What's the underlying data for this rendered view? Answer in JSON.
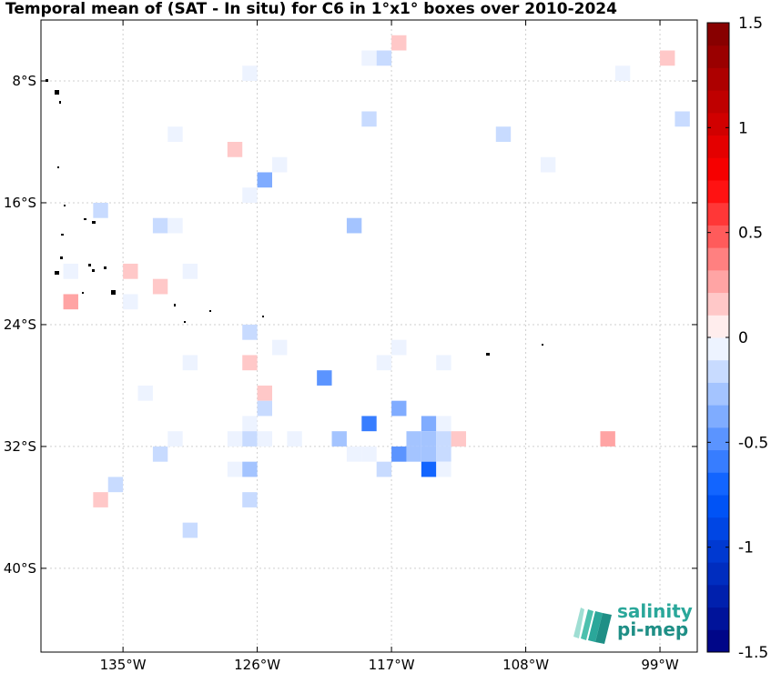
{
  "chart_data": {
    "type": "heatmap",
    "title": "Temporal mean of (SAT - In situ) for C6 in 1°x1° boxes over 2010-2024",
    "x_tick_labels": [
      "135°W",
      "126°W",
      "117°W",
      "108°W",
      "99°W"
    ],
    "y_tick_labels": [
      "8°S",
      "16°S",
      "24°S",
      "32°S",
      "40°S"
    ],
    "x_ticks": [
      -135,
      -126,
      -117,
      -108,
      -99
    ],
    "y_ticks": [
      -8,
      -16,
      -24,
      -32,
      -40
    ],
    "xlim": [
      -140.5,
      -96.5
    ],
    "ylim": [
      -45.5,
      -4
    ],
    "grid": true,
    "colorbar": {
      "range": [
        -1.5,
        1.5
      ],
      "ticks": [
        1.5,
        1,
        0.5,
        0,
        -0.5,
        -1,
        -1.5
      ],
      "tick_labels": [
        "1.5",
        "1",
        "0.5",
        "0",
        "-0.5",
        "-1",
        "-1.5"
      ],
      "levels": 28,
      "negative_color": "#00007f",
      "positive_color": "#7f0000"
    },
    "cells": [
      {
        "lon": -116.5,
        "lat": -5.5,
        "value": 0.15
      },
      {
        "lon": -118.5,
        "lat": -6.5,
        "value": -0.1
      },
      {
        "lon": -117.5,
        "lat": -6.5,
        "value": -0.2
      },
      {
        "lon": -98.5,
        "lat": -6.5,
        "value": 0.15
      },
      {
        "lon": -126.5,
        "lat": -7.5,
        "value": -0.1
      },
      {
        "lon": -101.5,
        "lat": -7.5,
        "value": -0.1
      },
      {
        "lon": -118.5,
        "lat": -10.5,
        "value": -0.2
      },
      {
        "lon": -97.5,
        "lat": -10.5,
        "value": -0.2
      },
      {
        "lon": -131.5,
        "lat": -11.5,
        "value": -0.1
      },
      {
        "lon": -109.5,
        "lat": -11.5,
        "value": -0.2
      },
      {
        "lon": -127.5,
        "lat": -12.5,
        "value": 0.2
      },
      {
        "lon": -124.5,
        "lat": -13.5,
        "value": -0.1
      },
      {
        "lon": -106.5,
        "lat": -13.5,
        "value": -0.1
      },
      {
        "lon": -125.5,
        "lat": -14.5,
        "value": -0.4
      },
      {
        "lon": -126.5,
        "lat": -15.5,
        "value": -0.1
      },
      {
        "lon": -136.5,
        "lat": -16.5,
        "value": -0.2
      },
      {
        "lon": -132.5,
        "lat": -17.5,
        "value": -0.2
      },
      {
        "lon": -131.5,
        "lat": -17.5,
        "value": -0.1
      },
      {
        "lon": -119.5,
        "lat": -17.5,
        "value": -0.3
      },
      {
        "lon": -138.5,
        "lat": -20.5,
        "value": -0.1
      },
      {
        "lon": -134.5,
        "lat": -20.5,
        "value": 0.15
      },
      {
        "lon": -130.5,
        "lat": -20.5,
        "value": -0.1
      },
      {
        "lon": -132.5,
        "lat": -21.5,
        "value": 0.15
      },
      {
        "lon": -138.5,
        "lat": -22.5,
        "value": 0.3
      },
      {
        "lon": -134.5,
        "lat": -22.5,
        "value": -0.1
      },
      {
        "lon": -126.5,
        "lat": -24.5,
        "value": -0.2
      },
      {
        "lon": -124.5,
        "lat": -25.5,
        "value": -0.1
      },
      {
        "lon": -116.5,
        "lat": -25.5,
        "value": -0.1
      },
      {
        "lon": -130.5,
        "lat": -26.5,
        "value": -0.1
      },
      {
        "lon": -126.5,
        "lat": -26.5,
        "value": 0.15
      },
      {
        "lon": -117.5,
        "lat": -26.5,
        "value": -0.1
      },
      {
        "lon": -113.5,
        "lat": -26.5,
        "value": -0.1
      },
      {
        "lon": -121.5,
        "lat": -27.5,
        "value": -0.45
      },
      {
        "lon": -133.5,
        "lat": -28.5,
        "value": -0.1
      },
      {
        "lon": -125.5,
        "lat": -28.5,
        "value": 0.15
      },
      {
        "lon": -125.5,
        "lat": -29.5,
        "value": -0.15
      },
      {
        "lon": -116.5,
        "lat": -29.5,
        "value": -0.35
      },
      {
        "lon": -126.5,
        "lat": -30.5,
        "value": -0.1
      },
      {
        "lon": -118.5,
        "lat": -30.5,
        "value": -0.6
      },
      {
        "lon": -114.5,
        "lat": -30.5,
        "value": -0.4
      },
      {
        "lon": -113.5,
        "lat": -30.5,
        "value": -0.1
      },
      {
        "lon": -131.5,
        "lat": -31.5,
        "value": -0.1
      },
      {
        "lon": -127.5,
        "lat": -31.5,
        "value": -0.1
      },
      {
        "lon": -126.5,
        "lat": -31.5,
        "value": -0.15
      },
      {
        "lon": -125.5,
        "lat": -31.5,
        "value": -0.1
      },
      {
        "lon": -123.5,
        "lat": -31.5,
        "value": -0.1
      },
      {
        "lon": -120.5,
        "lat": -31.5,
        "value": -0.3
      },
      {
        "lon": -115.5,
        "lat": -31.5,
        "value": -0.25
      },
      {
        "lon": -114.5,
        "lat": -31.5,
        "value": -0.25
      },
      {
        "lon": -113.5,
        "lat": -31.5,
        "value": -0.15
      },
      {
        "lon": -112.5,
        "lat": -31.5,
        "value": 0.15
      },
      {
        "lon": -102.5,
        "lat": -31.5,
        "value": 0.3
      },
      {
        "lon": -132.5,
        "lat": -32.5,
        "value": -0.2
      },
      {
        "lon": -119.5,
        "lat": -32.5,
        "value": -0.05
      },
      {
        "lon": -118.5,
        "lat": -32.5,
        "value": -0.05
      },
      {
        "lon": -116.5,
        "lat": -32.5,
        "value": -0.5
      },
      {
        "lon": -115.5,
        "lat": -32.5,
        "value": -0.25
      },
      {
        "lon": -114.5,
        "lat": -32.5,
        "value": -0.25
      },
      {
        "lon": -113.5,
        "lat": -32.5,
        "value": -0.15
      },
      {
        "lon": -127.5,
        "lat": -33.5,
        "value": -0.1
      },
      {
        "lon": -126.5,
        "lat": -33.5,
        "value": -0.3
      },
      {
        "lon": -117.5,
        "lat": -33.5,
        "value": -0.2
      },
      {
        "lon": -114.5,
        "lat": -33.5,
        "value": -0.7
      },
      {
        "lon": -113.5,
        "lat": -33.5,
        "value": -0.1
      },
      {
        "lon": -135.5,
        "lat": -34.5,
        "value": -0.2
      },
      {
        "lon": -136.5,
        "lat": -35.5,
        "value": 0.2
      },
      {
        "lon": -126.5,
        "lat": -35.5,
        "value": -0.2
      },
      {
        "lon": -130.5,
        "lat": -37.5,
        "value": -0.2
      }
    ]
  },
  "logo": {
    "line1": "salinity",
    "line2": "pi-mep"
  }
}
